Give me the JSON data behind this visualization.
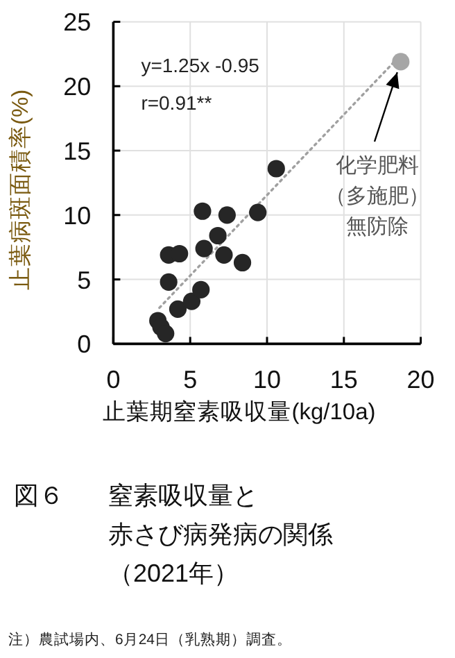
{
  "chart_data": {
    "type": "scatter",
    "xlabel": "止葉期窒素吸収量(kg/10a)",
    "ylabel": "止葉病斑面積率(%)",
    "title": "図６　窒素吸収量と赤さび病発病の関係",
    "subtitle": "（2021年）",
    "xlim": [
      0,
      20
    ],
    "xticks": [
      0,
      5,
      10,
      15,
      20
    ],
    "ylim": [
      0,
      25
    ],
    "yticks": [
      0,
      5,
      10,
      15,
      20,
      25
    ],
    "grid": true,
    "marker": "circle",
    "series": [
      {
        "type": "line",
        "color": "#a0a0a0",
        "line_style": "dotted",
        "marker": "none",
        "x": [
          3.0,
          18.2
        ],
        "values": [
          2.8,
          21.8
        ]
      },
      {
        "color": "#262626",
        "x": [
          2.9,
          3.1,
          3.4,
          3.6,
          3.6,
          4.3,
          4.2,
          5.1,
          5.7,
          5.8,
          5.9,
          6.8,
          7.2,
          7.4,
          8.4,
          9.4,
          10.6
        ],
        "values": [
          1.8,
          1.3,
          0.8,
          4.8,
          6.9,
          7.0,
          2.7,
          3.3,
          4.2,
          10.3,
          7.4,
          8.4,
          6.9,
          10.0,
          6.3,
          10.2,
          13.6
        ]
      },
      {
        "color": "#a6a6a6",
        "x": [
          18.7
        ],
        "values": [
          21.9
        ]
      }
    ],
    "annotations": [
      "y=1.25x -0.95",
      "r=0.91**",
      {
        "text": "化学肥料（多施肥）無防除",
        "x": 18.7,
        "y": 21.9
      },
      "注）農試場内、6月24日（乳熟期）調査。"
    ]
  }
}
